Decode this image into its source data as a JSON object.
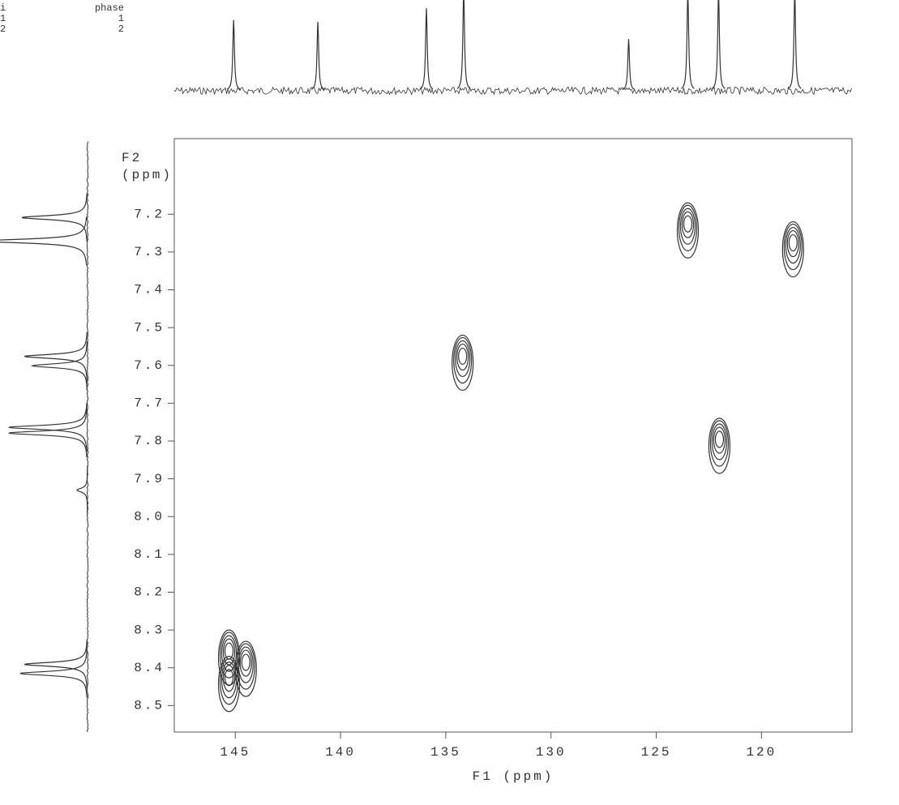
{
  "chart_data": {
    "type": "nmr2d",
    "parameters": [
      [
        "i",
        "1",
        "2"
      ],
      [
        "phase",
        "1",
        "2"
      ]
    ],
    "xlabel": "F1 (ppm)",
    "ylabel": [
      "F2",
      "(ppm)"
    ],
    "xlim": [
      147.9,
      115.7
    ],
    "ylim": [
      7.0,
      8.57
    ],
    "xticks": [
      145,
      140,
      135,
      130,
      125,
      120
    ],
    "yticks": [
      7.2,
      7.3,
      7.4,
      7.5,
      7.6,
      7.7,
      7.8,
      7.9,
      {
        "value": 8,
        "label": "8.0"
      },
      8.1,
      8.2,
      8.3,
      8.4,
      8.5
    ],
    "color": "#333333",
    "cross_peaks": {
      "x": [
        123.5,
        118.5,
        134.2,
        122.0,
        145.3,
        145.3,
        144.5
      ],
      "y": [
        7.23,
        7.28,
        7.58,
        7.8,
        8.36,
        8.43,
        8.39
      ]
    },
    "f1_projection": {
      "x": [
        145.08,
        141.08,
        135.92,
        134.15,
        126.31,
        123.5,
        122.04,
        118.42
      ],
      "intensities": [
        0.78,
        0.76,
        0.91,
        1.1,
        0.57,
        1.1,
        1.1,
        1.1
      ]
    },
    "f2_projection": {
      "y": [
        7.209,
        7.271,
        7.576,
        7.601,
        7.764,
        7.779,
        7.93,
        8.391,
        8.415
      ],
      "intensities": [
        0.75,
        1.2,
        0.72,
        0.63,
        0.9,
        0.9,
        0.12,
        0.72,
        0.77
      ]
    }
  }
}
